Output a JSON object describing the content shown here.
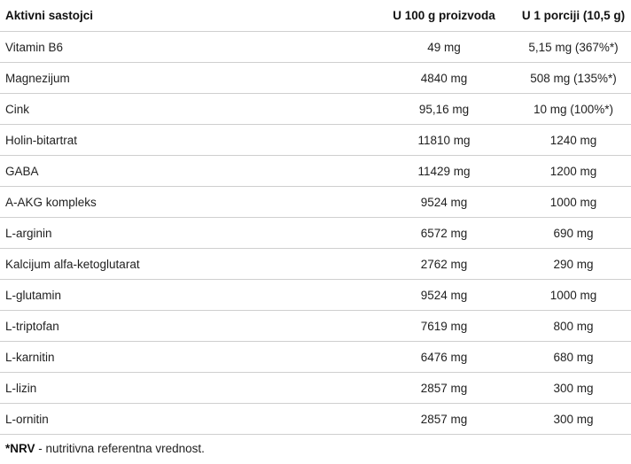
{
  "table": {
    "headers": [
      "Aktivni sastojci",
      "U 100 g proizvoda",
      "U 1 porciji (10,5 g)"
    ],
    "rows": [
      [
        "Vitamin B6",
        "49 mg",
        "5,15 mg (367%*)"
      ],
      [
        "Magnezijum",
        "4840 mg",
        "508 mg (135%*)"
      ],
      [
        "Cink",
        "95,16 mg",
        "10 mg (100%*)"
      ],
      [
        "Holin-bitartrat",
        "11810 mg",
        "1240 mg"
      ],
      [
        "GABA",
        "11429 mg",
        "1200 mg"
      ],
      [
        "A-AKG kompleks",
        "9524 mg",
        "1000 mg"
      ],
      [
        "L-arginin",
        "6572 mg",
        "690 mg"
      ],
      [
        "Kalcijum alfa-ketoglutarat",
        "2762 mg",
        "290 mg"
      ],
      [
        "L-glutamin",
        "9524 mg",
        "1000 mg"
      ],
      [
        "L-triptofan",
        "7619 mg",
        "800 mg"
      ],
      [
        "L-karnitin",
        "6476 mg",
        "680 mg"
      ],
      [
        "L-lizin",
        "2857 mg",
        "300 mg"
      ],
      [
        "L-ornitin",
        "2857 mg",
        "300 mg"
      ]
    ]
  },
  "footnote": {
    "marker": "*NRV",
    "text": " - nutritivna referentna vrednost."
  },
  "colors": {
    "text": "#1f1f1f",
    "divider": "#cfcfcf",
    "background": "#ffffff"
  }
}
